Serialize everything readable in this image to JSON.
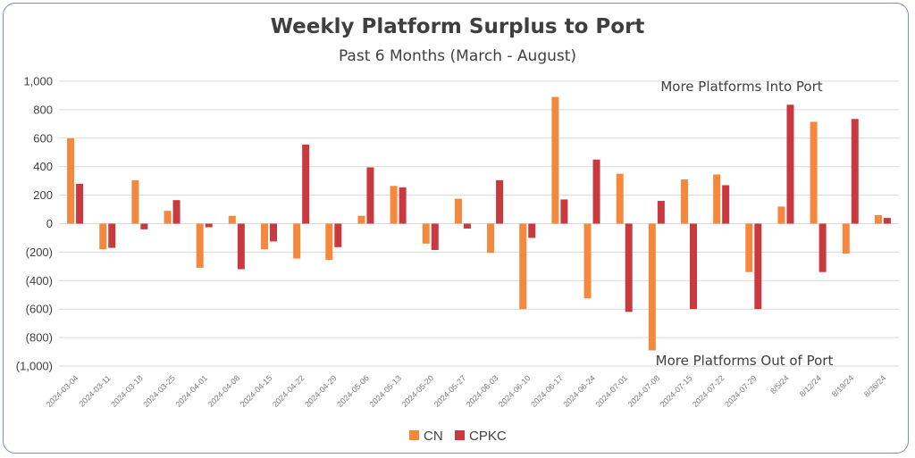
{
  "chart_data": {
    "type": "bar",
    "title": "Weekly Platform Surplus to Port",
    "subtitle": "Past 6 Months (March - August)",
    "xlabel": "",
    "ylabel": "",
    "ylim": [
      -1000,
      1000
    ],
    "yticks": [
      1000,
      800,
      600,
      400,
      200,
      0,
      -200,
      -400,
      -600,
      -800,
      -1000
    ],
    "ytick_labels": [
      "1,000",
      "800",
      "600",
      "400",
      "200",
      "0",
      "(200)",
      "(400)",
      "(600)",
      "(800)",
      "(1,000)"
    ],
    "grid": true,
    "legend_position": "bottom",
    "categories": [
      "2024-03-04",
      "2024-03-11",
      "2024-03-18",
      "2024-03-25",
      "2024-04-01",
      "2024-04-08",
      "2024-04-15",
      "2024-04-22",
      "2024-04-29",
      "2024-05-06",
      "2024-05-13",
      "2024-05-20",
      "2024-05-27",
      "2024-06-03",
      "2024-06-10",
      "2024-06-17",
      "2024-06-24",
      "2024-07-01",
      "2024-07-08",
      "2024-07-15",
      "2024-07-22",
      "2024-07-29",
      "8/5/24",
      "8/12/24",
      "8/19/24",
      "8/26/24"
    ],
    "series": [
      {
        "name": "CN",
        "color": "#f5883f",
        "values": [
          600,
          -180,
          305,
          90,
          -310,
          55,
          -180,
          -245,
          -255,
          55,
          265,
          -140,
          175,
          -205,
          -600,
          890,
          -525,
          350,
          -890,
          310,
          345,
          -340,
          120,
          715,
          -210,
          60
        ]
      },
      {
        "name": "CPKC",
        "color": "#c93a40",
        "values": [
          280,
          -170,
          -40,
          165,
          -25,
          -320,
          -125,
          555,
          -165,
          395,
          255,
          -185,
          -35,
          305,
          -100,
          170,
          450,
          -620,
          160,
          -600,
          270,
          -600,
          835,
          -340,
          735,
          40
        ]
      }
    ],
    "annotations": [
      {
        "text": "More Platforms Into Port",
        "anchor": "top-right"
      },
      {
        "text": "More Platforms Out of Port",
        "anchor": "bottom-right"
      }
    ]
  }
}
